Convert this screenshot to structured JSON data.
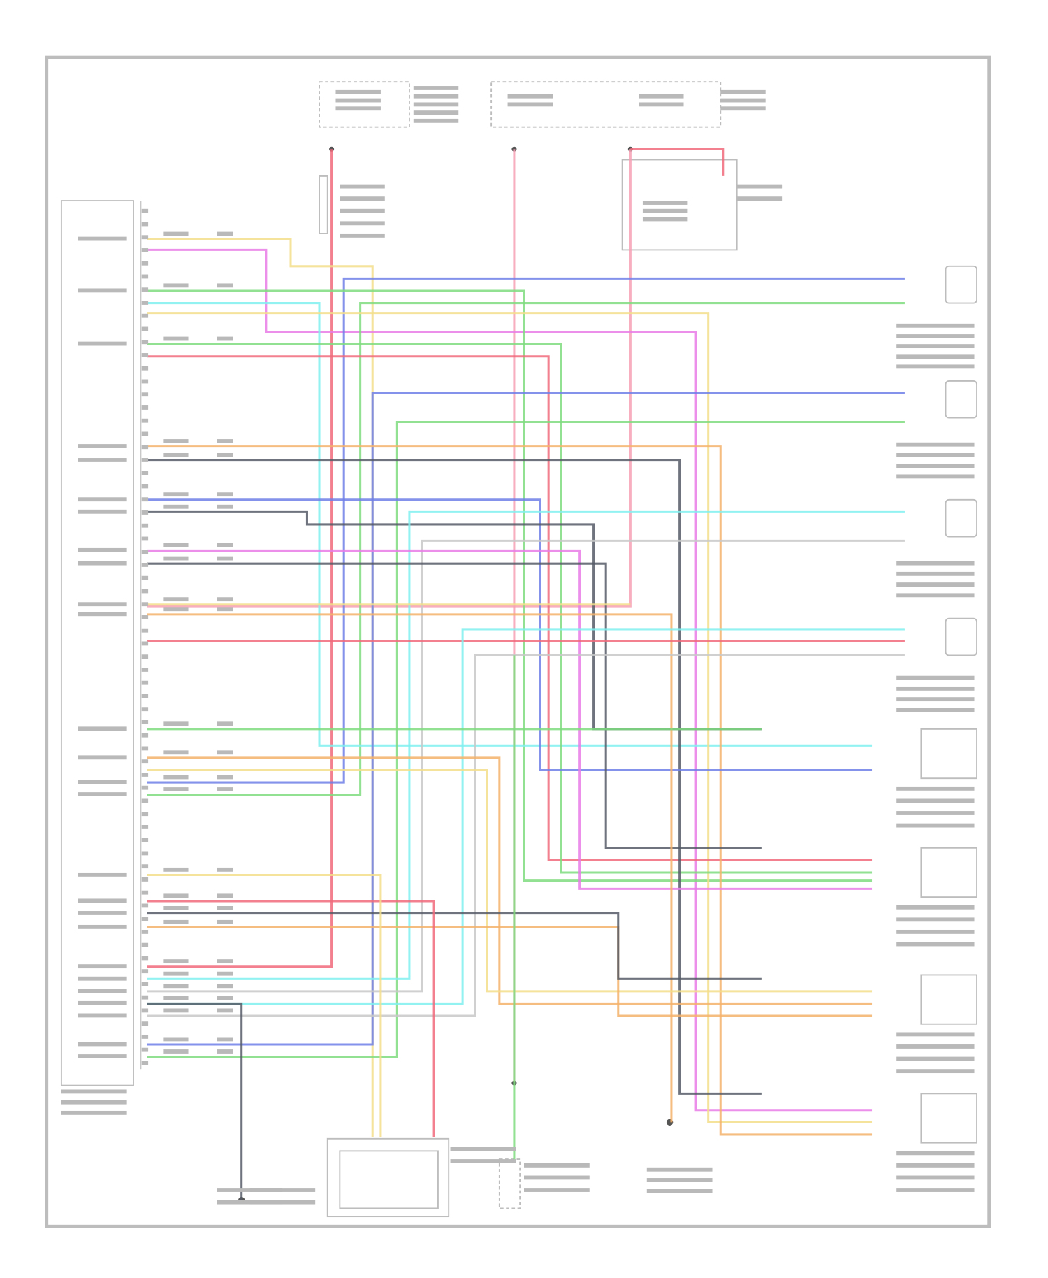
{
  "wire_colors": {
    "red": "#f06a7a",
    "pink": "#f7a0b4",
    "magenta": "#e77be6",
    "yellow": "#f3de8a",
    "orange": "#f5b26b",
    "green": "#7fdc7f",
    "blue": "#6f7fe8",
    "cyan": "#7ff0f0",
    "dark-gray": "#555a66",
    "light-gray": "#c8c8c8",
    "frame": "#bdbdbd"
  },
  "components": [
    {
      "name": "left-module",
      "icon": "module-box-icon"
    },
    {
      "name": "top-fuse-left",
      "icon": "fuse-icon"
    },
    {
      "name": "top-fuse-middle",
      "icon": "fuse-icon"
    },
    {
      "name": "top-fuse-right",
      "icon": "fuse-icon"
    },
    {
      "name": "speed-sensor-1",
      "icon": "sensor-connector-icon"
    },
    {
      "name": "speed-sensor-2",
      "icon": "sensor-connector-icon"
    },
    {
      "name": "speed-sensor-3",
      "icon": "sensor-connector-icon"
    },
    {
      "name": "speed-sensor-4",
      "icon": "sensor-connector-icon"
    },
    {
      "name": "valve-module-1",
      "icon": "module-box-icon"
    },
    {
      "name": "valve-module-2",
      "icon": "module-box-icon"
    },
    {
      "name": "valve-module-3",
      "icon": "module-box-icon"
    },
    {
      "name": "valve-module-4",
      "icon": "module-box-icon"
    },
    {
      "name": "bottom-relay",
      "icon": "relay-icon"
    },
    {
      "name": "bottom-connector",
      "icon": "connector-icon"
    },
    {
      "name": "ground-point-left",
      "icon": "ground-icon"
    },
    {
      "name": "ground-point-right",
      "icon": "ground-icon"
    }
  ]
}
